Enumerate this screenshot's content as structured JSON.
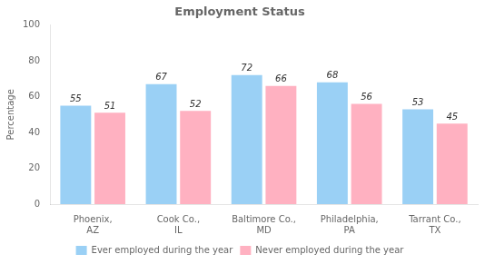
{
  "chart_data": {
    "type": "bar",
    "title": "Employment Status",
    "ylabel": "Percentage",
    "categories": [
      "Phoenix,\nAZ",
      "Cook Co.,\nIL",
      "Baltimore Co.,\nMD",
      "Philadelphia,\nPA",
      "Tarrant Co.,\nTX"
    ],
    "series": [
      {
        "name": "Ever employed during the year",
        "values": [
          55,
          67,
          72,
          68,
          53
        ]
      },
      {
        "name": "Never employed during the year",
        "values": [
          51,
          52,
          66,
          56,
          45
        ]
      }
    ],
    "ylim": [
      0,
      100
    ],
    "yticks": [
      0,
      20,
      40,
      60,
      80,
      100
    ],
    "grid": false,
    "legend": "bottom",
    "data_labels": true
  }
}
